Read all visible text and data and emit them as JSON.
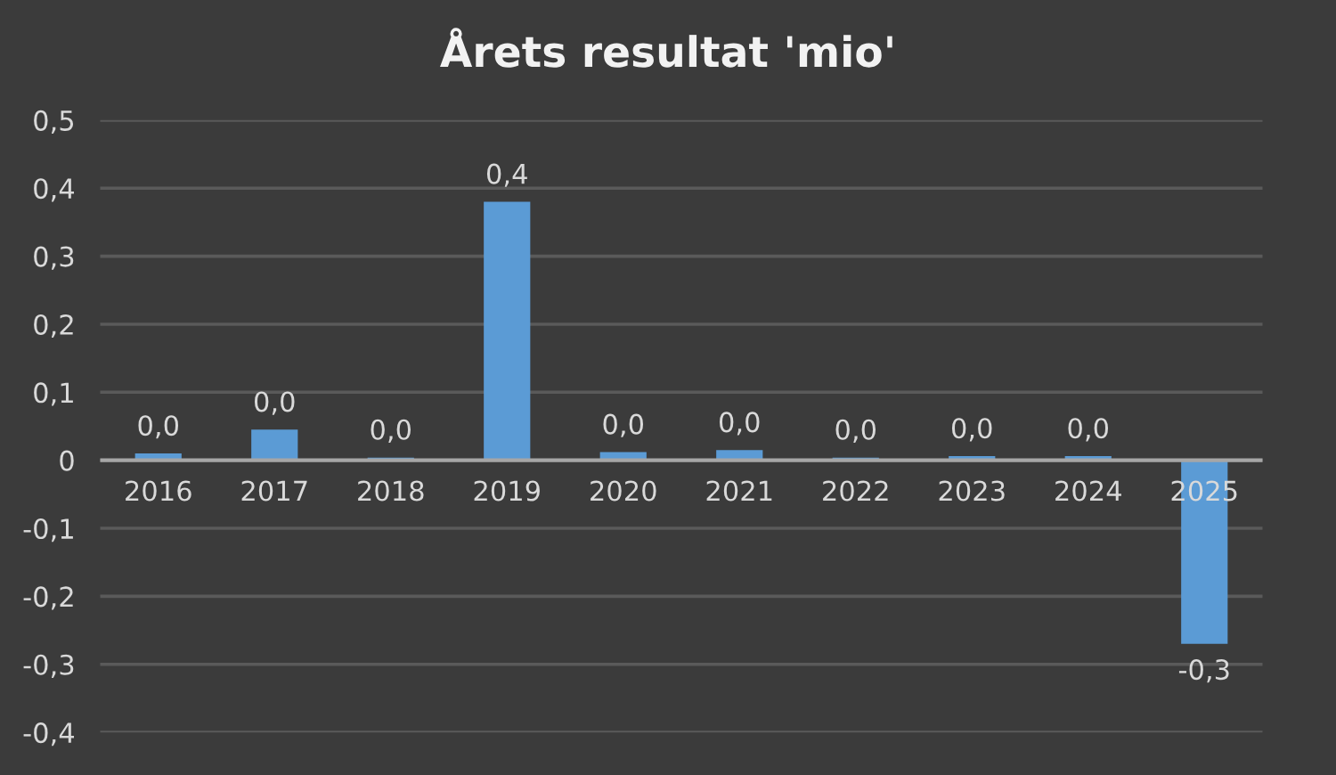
{
  "chart_data": {
    "type": "bar",
    "title": "Årets resultat 'mio'",
    "categories": [
      "2016",
      "2017",
      "2018",
      "2019",
      "2020",
      "2021",
      "2022",
      "2023",
      "2024",
      "2025"
    ],
    "values": [
      0.01,
      0.045,
      0.004,
      0.38,
      0.012,
      0.015,
      0.004,
      0.006,
      0.006,
      -0.27
    ],
    "value_labels": [
      "0,0",
      "0,0",
      "0,0",
      "0,4",
      "0,0",
      "0,0",
      "0,0",
      "0,0",
      "0,0",
      "-0,3"
    ],
    "color": "#5b9bd5",
    "ylim": [
      -0.4,
      0.5
    ],
    "yticks": [
      {
        "value": -0.4,
        "label": "-0,4"
      },
      {
        "value": -0.3,
        "label": "-0,3"
      },
      {
        "value": -0.2,
        "label": "-0,2"
      },
      {
        "value": -0.1,
        "label": "-0,1"
      },
      0,
      {
        "value": 0.1,
        "label": "0,1"
      },
      {
        "value": 0.2,
        "label": "0,2"
      },
      {
        "value": 0.3,
        "label": "0,3"
      },
      {
        "value": 0.4,
        "label": "0,4"
      },
      {
        "value": 0.5,
        "label": "0,5"
      }
    ],
    "grid": "y"
  }
}
